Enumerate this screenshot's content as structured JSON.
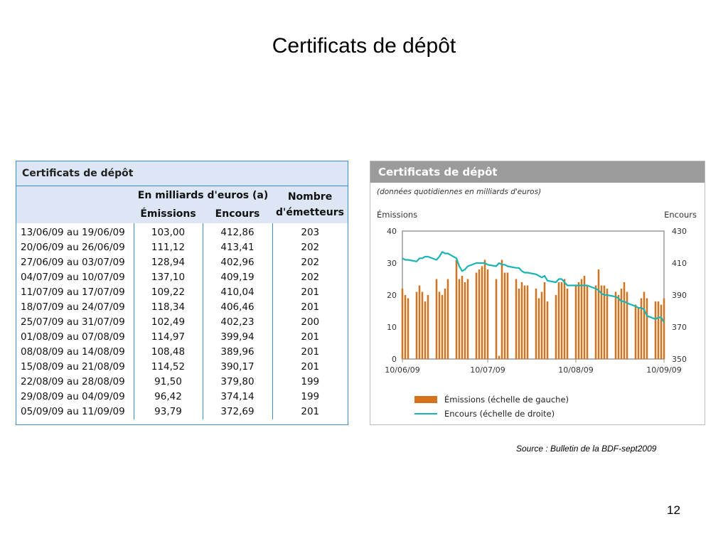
{
  "slide": {
    "title": "Certificats de dépôt",
    "source": "Source : Bulletin de la BDF-sept2009",
    "page_number": "12"
  },
  "table": {
    "title": "Certificats de dépôt",
    "group_header": "En milliards d'euros (a)",
    "col_emissions": "Émissions",
    "col_encours": "Encours",
    "col_nombre_line1": "Nombre",
    "col_nombre_line2": "d'émetteurs",
    "rows": [
      {
        "period": "13/06/09 au 19/06/09",
        "emissions": "103,00",
        "encours": "412,86",
        "nombre": "203"
      },
      {
        "period": "20/06/09 au 26/06/09",
        "emissions": "111,12",
        "encours": "413,41",
        "nombre": "202"
      },
      {
        "period": "27/06/09 au 03/07/09",
        "emissions": "128,94",
        "encours": "402,96",
        "nombre": "202"
      },
      {
        "period": "04/07/09 au 10/07/09",
        "emissions": "137,10",
        "encours": "409,19",
        "nombre": "202"
      },
      {
        "period": "11/07/09 au 17/07/09",
        "emissions": "109,22",
        "encours": "410,04",
        "nombre": "201"
      },
      {
        "period": "18/07/09 au 24/07/09",
        "emissions": "118,34",
        "encours": "406,46",
        "nombre": "201"
      },
      {
        "period": "25/07/09 au 31/07/09",
        "emissions": "102,49",
        "encours": "402,23",
        "nombre": "200"
      },
      {
        "period": "01/08/09 au 07/08/09",
        "emissions": "114,97",
        "encours": "399,94",
        "nombre": "201"
      },
      {
        "period": "08/08/09 au 14/08/09",
        "emissions": "108,48",
        "encours": "389,96",
        "nombre": "201"
      },
      {
        "period": "15/08/09 au 21/08/09",
        "emissions": "114,52",
        "encours": "390,17",
        "nombre": "201"
      },
      {
        "period": "22/08/09 au 28/08/09",
        "emissions": "91,50",
        "encours": "379,80",
        "nombre": "199"
      },
      {
        "period": "29/08/09 au 04/09/09",
        "emissions": "96,42",
        "encours": "374,14",
        "nombre": "199"
      },
      {
        "period": "05/09/09 au 11/09/09",
        "emissions": "93,79",
        "encours": "372,69",
        "nombre": "201"
      }
    ]
  },
  "chart_data": {
    "type": "bar",
    "title": "Certificats de dépôt",
    "subtitle": "(données quotidiennes en milliards d'euros)",
    "ylabel_left": "Émissions",
    "ylabel_right": "Encours",
    "ylim_left": [
      0,
      40
    ],
    "ylim_right": [
      350,
      430
    ],
    "yticks_left": [
      "0",
      "10",
      "20",
      "30",
      "40"
    ],
    "yticks_right": [
      "350",
      "370",
      "390",
      "410",
      "430"
    ],
    "xlim": [
      "2009-06-10",
      "2009-09-10"
    ],
    "xticks": [
      "10/06/09",
      "10/07/09",
      "10/08/09",
      "10/09/09"
    ],
    "grid": false,
    "legend_position": "bottom",
    "colors": {
      "bars": "#d4721e",
      "line": "#1bb3b3",
      "axes": "#9a9a9a"
    },
    "series": [
      {
        "name": "Émissions (échelle de gauche)",
        "kind": "bar",
        "axis": "left",
        "x": [
          "2009-06-10",
          "2009-06-11",
          "2009-06-12",
          "2009-06-15",
          "2009-06-16",
          "2009-06-17",
          "2009-06-18",
          "2009-06-19",
          "2009-06-22",
          "2009-06-23",
          "2009-06-24",
          "2009-06-25",
          "2009-06-26",
          "2009-06-29",
          "2009-06-30",
          "2009-07-01",
          "2009-07-02",
          "2009-07-03",
          "2009-07-06",
          "2009-07-07",
          "2009-07-08",
          "2009-07-09",
          "2009-07-10",
          "2009-07-13",
          "2009-07-14",
          "2009-07-15",
          "2009-07-16",
          "2009-07-17",
          "2009-07-20",
          "2009-07-21",
          "2009-07-22",
          "2009-07-23",
          "2009-07-24",
          "2009-07-27",
          "2009-07-28",
          "2009-07-29",
          "2009-07-30",
          "2009-07-31",
          "2009-08-03",
          "2009-08-04",
          "2009-08-05",
          "2009-08-06",
          "2009-08-07",
          "2009-08-10",
          "2009-08-11",
          "2009-08-12",
          "2009-08-13",
          "2009-08-14",
          "2009-08-17",
          "2009-08-18",
          "2009-08-19",
          "2009-08-20",
          "2009-08-21",
          "2009-08-24",
          "2009-08-25",
          "2009-08-26",
          "2009-08-27",
          "2009-08-28",
          "2009-08-31",
          "2009-09-01",
          "2009-09-02",
          "2009-09-03",
          "2009-09-04",
          "2009-09-07",
          "2009-09-08",
          "2009-09-09",
          "2009-09-10"
        ],
        "values": [
          22,
          20,
          19,
          21,
          23,
          21,
          18,
          20,
          25,
          21,
          20,
          22,
          25,
          31,
          25,
          26,
          24,
          25,
          27,
          28,
          29,
          31,
          28,
          25,
          1,
          31,
          27,
          27,
          25,
          22,
          24,
          23,
          23,
          22,
          19,
          21,
          24,
          18,
          20,
          24,
          24,
          25,
          22,
          23,
          24,
          25,
          26,
          23,
          23,
          28,
          23,
          23,
          22,
          21,
          20,
          22,
          24,
          21,
          17,
          16,
          19,
          21,
          19,
          18,
          18,
          17,
          19
        ]
      },
      {
        "name": "Encours (échelle de droite)",
        "kind": "line",
        "axis": "right",
        "x": [
          "2009-06-10",
          "2009-06-11",
          "2009-06-12",
          "2009-06-15",
          "2009-06-16",
          "2009-06-17",
          "2009-06-18",
          "2009-06-19",
          "2009-06-22",
          "2009-06-23",
          "2009-06-24",
          "2009-06-25",
          "2009-06-26",
          "2009-06-29",
          "2009-06-30",
          "2009-07-01",
          "2009-07-02",
          "2009-07-03",
          "2009-07-06",
          "2009-07-07",
          "2009-07-08",
          "2009-07-09",
          "2009-07-10",
          "2009-07-13",
          "2009-07-14",
          "2009-07-15",
          "2009-07-16",
          "2009-07-17",
          "2009-07-20",
          "2009-07-21",
          "2009-07-22",
          "2009-07-23",
          "2009-07-24",
          "2009-07-27",
          "2009-07-28",
          "2009-07-29",
          "2009-07-30",
          "2009-07-31",
          "2009-08-03",
          "2009-08-04",
          "2009-08-05",
          "2009-08-06",
          "2009-08-07",
          "2009-08-10",
          "2009-08-11",
          "2009-08-12",
          "2009-08-13",
          "2009-08-14",
          "2009-08-17",
          "2009-08-18",
          "2009-08-19",
          "2009-08-20",
          "2009-08-21",
          "2009-08-24",
          "2009-08-25",
          "2009-08-26",
          "2009-08-27",
          "2009-08-28",
          "2009-08-31",
          "2009-09-01",
          "2009-09-02",
          "2009-09-03",
          "2009-09-04",
          "2009-09-07",
          "2009-09-08",
          "2009-09-09",
          "2009-09-10"
        ],
        "values": [
          413,
          412,
          412,
          411,
          413,
          413,
          414,
          414,
          412,
          414,
          417,
          416,
          416,
          413,
          408,
          405,
          406,
          408,
          410,
          410,
          410,
          410,
          409,
          408,
          410,
          409,
          409,
          408,
          407,
          407,
          405,
          404,
          404,
          403,
          402,
          401,
          402,
          399,
          398,
          400,
          400,
          398,
          396,
          396,
          396,
          396,
          396,
          396,
          394,
          393,
          391,
          390,
          390,
          389,
          388,
          386,
          386,
          385,
          383,
          382,
          382,
          381,
          377,
          375,
          376,
          376,
          373
        ]
      }
    ]
  }
}
